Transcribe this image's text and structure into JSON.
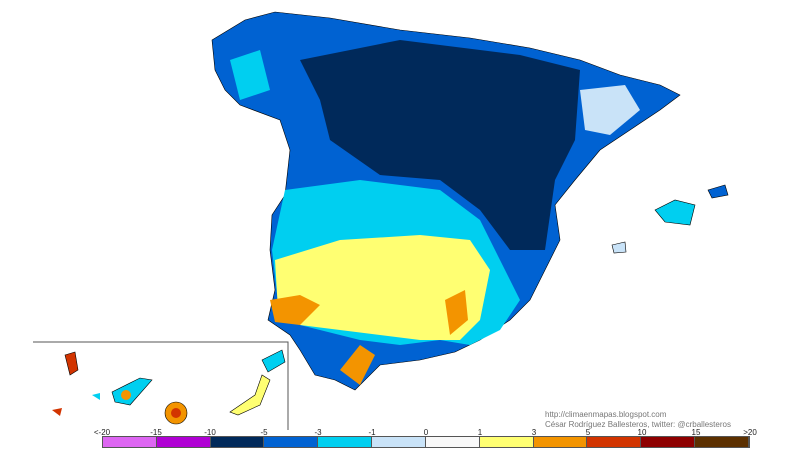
{
  "credits": {
    "url": "http://climaenmapas.blogspot.com",
    "author": "César Rodríguez Ballesteros, twitter: @crballesteros"
  },
  "legend": {
    "ticks": [
      "<-20",
      "-15",
      "-10",
      "-5",
      "-3",
      "-1",
      "0",
      "1",
      "3",
      "5",
      "10",
      "15",
      ">20"
    ],
    "colors": [
      "#dd66f2",
      "#b000d4",
      "#00295a",
      "#0062d2",
      "#00cff0",
      "#c9e3f8",
      "#f8f8f8",
      "#ffff72",
      "#f39400",
      "#d23400",
      "#8e0000",
      "#5c3000"
    ]
  }
}
